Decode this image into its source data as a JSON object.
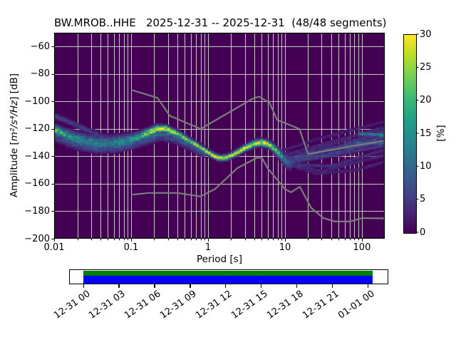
{
  "title": "BW.MROB..HHE   2025-12-31 -- 2025-12-31  (48/48 segments)",
  "meta": {
    "station_id": "BW.MROB..HHE",
    "date_start": "2025-12-31",
    "date_end": "2025-12-31",
    "segments": "48/48 segments"
  },
  "axes": {
    "x": {
      "label": "Period [s]",
      "scale": "log",
      "major_ticks": [
        0.01,
        0.1,
        1,
        10,
        100
      ],
      "major_labels": [
        "0.01",
        "0.1",
        "1",
        "10",
        "100"
      ]
    },
    "y": {
      "label_prefix": "Amplitude [",
      "label_math": "m²/s⁴/Hz",
      "label_suffix": "] [dB]",
      "ticks": [
        -60,
        -80,
        -100,
        -120,
        -140,
        -160,
        -180,
        -200
      ],
      "labels": [
        "−60",
        "−80",
        "−100",
        "−120",
        "−140",
        "−160",
        "−180",
        "−200"
      ]
    }
  },
  "colorbar": {
    "label": "[%]",
    "min": 0,
    "max": 30,
    "ticks": [
      0,
      5,
      10,
      15,
      20,
      25,
      30
    ],
    "tick_labels": [
      "0",
      "5",
      "10",
      "15",
      "20",
      "25",
      "30"
    ]
  },
  "timeline": {
    "tick_labels": [
      "12-31 00",
      "12-31 03",
      "12-31 06",
      "12-31 09",
      "12-31 12",
      "12-31 15",
      "12-31 18",
      "12-31 21",
      "01-01 00"
    ],
    "coverage_color": "#008000",
    "data_color": "#0000ff"
  },
  "colors": {
    "background": "#440154",
    "grid": "#c6c6c6",
    "noise_model": "#7d7d7d",
    "spine": "#000000",
    "viridis": [
      [
        0.0,
        68,
        1,
        84
      ],
      [
        0.1,
        72,
        36,
        117
      ],
      [
        0.2,
        65,
        68,
        135
      ],
      [
        0.3,
        53,
        95,
        141
      ],
      [
        0.4,
        42,
        120,
        142
      ],
      [
        0.5,
        33,
        144,
        141
      ],
      [
        0.6,
        34,
        167,
        133
      ],
      [
        0.7,
        68,
        190,
        112
      ],
      [
        0.8,
        122,
        209,
        81
      ],
      [
        0.9,
        189,
        222,
        38
      ],
      [
        1.0,
        253,
        231,
        37
      ]
    ]
  },
  "chart_data": {
    "type": "heatmap",
    "title": "BW.MROB..HHE   2025-12-31 -- 2025-12-31  (48/48 segments)",
    "xlabel": "Period [s]",
    "ylabel": "Amplitude [m²/s⁴/Hz] [dB]",
    "xscale": "log",
    "xlim": [
      0.01,
      198
    ],
    "ylim": [
      -200,
      -50
    ],
    "colorbar_label": "[%]",
    "clim": [
      0,
      30
    ],
    "grid": true,
    "mode_curve_comment": "dominant PSD mode line [period s, dB]",
    "mode_curve": [
      [
        0.01,
        -120.5
      ],
      [
        0.013,
        -123.5
      ],
      [
        0.018,
        -126.5
      ],
      [
        0.025,
        -129
      ],
      [
        0.04,
        -130.5
      ],
      [
        0.06,
        -130
      ],
      [
        0.08,
        -129
      ],
      [
        0.1,
        -128
      ],
      [
        0.13,
        -125.5
      ],
      [
        0.17,
        -122.5
      ],
      [
        0.22,
        -119.8
      ],
      [
        0.28,
        -119.8
      ],
      [
        0.35,
        -122
      ],
      [
        0.5,
        -126.5
      ],
      [
        0.7,
        -131.5
      ],
      [
        0.9,
        -135.5
      ],
      [
        1.1,
        -138.5
      ],
      [
        1.4,
        -141.3
      ],
      [
        1.8,
        -140.5
      ],
      [
        2.3,
        -137.5
      ],
      [
        3.0,
        -133.8
      ],
      [
        4.0,
        -130.6
      ],
      [
        5.0,
        -129.7
      ],
      [
        6.0,
        -131
      ],
      [
        7.0,
        -133.8
      ],
      [
        8.5,
        -138.5
      ],
      [
        10.0,
        -143
      ],
      [
        12.0,
        -145.5
      ]
    ],
    "histogram": {
      "bands": [
        {
          "name": "main-ridge",
          "pts": [
            [
              0.01,
              -120.5
            ],
            [
              0.013,
              -123.5
            ],
            [
              0.018,
              -126.5
            ],
            [
              0.025,
              -129
            ],
            [
              0.04,
              -130.5
            ],
            [
              0.06,
              -130
            ],
            [
              0.08,
              -129
            ],
            [
              0.1,
              -128
            ],
            [
              0.13,
              -125.5
            ],
            [
              0.17,
              -122.5
            ],
            [
              0.22,
              -119.8
            ],
            [
              0.28,
              -119.8
            ],
            [
              0.35,
              -122
            ],
            [
              0.5,
              -126.5
            ],
            [
              0.7,
              -131.5
            ],
            [
              0.9,
              -135.5
            ],
            [
              1.1,
              -138.5
            ],
            [
              1.4,
              -141.3
            ],
            [
              1.8,
              -140.5
            ],
            [
              2.3,
              -137.5
            ],
            [
              3.0,
              -133.8
            ],
            [
              4.0,
              -130.6
            ],
            [
              5.0,
              -129.7
            ],
            [
              6.0,
              -131
            ],
            [
              7.0,
              -133.8
            ],
            [
              8.5,
              -138.5
            ],
            [
              10.0,
              -143
            ],
            [
              12.0,
              -145.5
            ]
          ],
          "peak": [
            [
              0.01,
              22
            ],
            [
              0.02,
              15
            ],
            [
              0.05,
              13
            ],
            [
              0.09,
              15
            ],
            [
              0.14,
              22
            ],
            [
              0.2,
              30
            ],
            [
              0.3,
              29
            ],
            [
              0.45,
              24
            ],
            [
              0.7,
              27
            ],
            [
              1.0,
              30
            ],
            [
              1.5,
              30
            ],
            [
              2.2,
              27
            ],
            [
              3.0,
              29
            ],
            [
              4.0,
              30
            ],
            [
              5.5,
              30
            ],
            [
              7.0,
              24
            ],
            [
              8.5,
              17
            ],
            [
              10.0,
              11
            ],
            [
              12.0,
              7
            ]
          ],
          "sigma": [
            [
              0.01,
              2.2
            ],
            [
              0.025,
              3.2
            ],
            [
              0.06,
              3.2
            ],
            [
              0.1,
              2.6
            ],
            [
              0.15,
              2.0
            ],
            [
              0.25,
              1.6
            ],
            [
              0.5,
              1.3
            ],
            [
              1.0,
              1.2
            ],
            [
              2.0,
              1.3
            ],
            [
              4.0,
              1.5
            ],
            [
              6.0,
              1.6
            ],
            [
              8.0,
              2.0
            ],
            [
              10.0,
              2.6
            ],
            [
              12.0,
              3.2
            ]
          ]
        },
        {
          "name": "upper-left-trace",
          "pts": [
            [
              0.01,
              -110.5
            ],
            [
              0.014,
              -113.5
            ],
            [
              0.02,
              -117.5
            ],
            [
              0.029,
              -121.5
            ],
            [
              0.042,
              -125.5
            ],
            [
              0.055,
              -128
            ]
          ],
          "peak": [
            [
              0.01,
              8
            ],
            [
              0.02,
              6
            ],
            [
              0.055,
              5
            ]
          ],
          "sigma": 1.3
        },
        {
          "name": "broad-under-band",
          "pts": [
            [
              0.01,
              -125.5
            ],
            [
              0.018,
              -131
            ],
            [
              0.035,
              -134.5
            ],
            [
              0.06,
              -134
            ],
            [
              0.1,
              -131.5
            ],
            [
              0.16,
              -128
            ],
            [
              0.25,
              -125
            ],
            [
              0.4,
              -128
            ],
            [
              0.6,
              -132.5
            ],
            [
              0.9,
              -138
            ]
          ],
          "peak": 7,
          "sigma": 2.2
        },
        {
          "name": "sub-ridge",
          "pts": [
            [
              0.07,
              -131.5
            ],
            [
              0.1,
              -129.8
            ],
            [
              0.15,
              -126.8
            ],
            [
              0.22,
              -124.3
            ],
            [
              0.32,
              -123.8
            ],
            [
              0.45,
              -127
            ],
            [
              0.6,
              -131.5
            ]
          ],
          "peak": 12,
          "sigma": 1.0
        },
        {
          "name": "fan-1",
          "pts": [
            [
              9,
              -139.5
            ],
            [
              198,
              -118.5
            ]
          ],
          "peak": 4,
          "sigma": 0.8
        },
        {
          "name": "fan-2",
          "pts": [
            [
              10,
              -141.5
            ],
            [
              60,
              -131.5
            ],
            [
              198,
              -122.5
            ]
          ],
          "peak": 6,
          "sigma": 0.8
        },
        {
          "name": "fan-3",
          "pts": [
            [
              10,
              -143
            ],
            [
              198,
              -126
            ]
          ],
          "peak": 8,
          "sigma": 0.8
        },
        {
          "name": "fan-4",
          "pts": [
            [
              11,
              -144
            ],
            [
              50,
              -136.5
            ],
            [
              198,
              -128.5
            ]
          ],
          "peak": 7,
          "sigma": 0.8
        },
        {
          "name": "fan-5",
          "pts": [
            [
              11,
              -145
            ],
            [
              198,
              -132
            ]
          ],
          "peak": 6,
          "sigma": 0.8
        },
        {
          "name": "fan-6",
          "pts": [
            [
              12,
              -146
            ],
            [
              40,
              -147
            ],
            [
              198,
              -135
            ]
          ],
          "peak": 5,
          "sigma": 0.8
        },
        {
          "name": "fan-7",
          "pts": [
            [
              12,
              -146.5
            ],
            [
              30,
              -150.5
            ],
            [
              198,
              -139
            ]
          ],
          "peak": 4,
          "sigma": 0.8
        },
        {
          "name": "fan-8",
          "pts": [
            [
              13,
              -147.5
            ],
            [
              25,
              -152.5
            ],
            [
              80,
              -150
            ],
            [
              198,
              -144
            ]
          ],
          "peak": 3.5,
          "sigma": 0.8
        },
        {
          "name": "fan-9",
          "pts": [
            [
              9,
              -136
            ],
            [
              25,
              -127.5
            ],
            [
              198,
              -114.5
            ]
          ],
          "peak": 3,
          "sigma": 0.8
        },
        {
          "name": "fan-10",
          "pts": [
            [
              90,
              -123.5
            ],
            [
              198,
              -124.5
            ]
          ],
          "peak": 13,
          "sigma": 1.0
        },
        {
          "name": "fan-11",
          "pts": [
            [
              80,
              -130
            ],
            [
              198,
              -130.5
            ]
          ],
          "peak": 10,
          "sigma": 1.0
        },
        {
          "name": "fan-12",
          "pts": [
            [
              14,
              -141
            ],
            [
              40,
              -134.5
            ],
            [
              198,
              -120.5
            ]
          ],
          "peak": 5,
          "sigma": 0.8
        },
        {
          "name": "fan-13",
          "pts": [
            [
              15,
              -138
            ],
            [
              60,
              -128
            ],
            [
              198,
              -126.5
            ]
          ],
          "peak": 4,
          "sigma": 0.8
        }
      ]
    },
    "noise_models": {
      "NLNM": [
        [
          0.1,
          -168.0
        ],
        [
          0.17,
          -166.7
        ],
        [
          0.4,
          -166.7
        ],
        [
          0.8,
          -169.2
        ],
        [
          1.24,
          -163.7
        ],
        [
          2.4,
          -148.6
        ],
        [
          4.3,
          -141.1
        ],
        [
          5.0,
          -141.1
        ],
        [
          6.0,
          -149.0
        ],
        [
          10.0,
          -163.8
        ],
        [
          12.0,
          -166.2
        ],
        [
          15.6,
          -162.1
        ],
        [
          21.9,
          -177.5
        ],
        [
          31.6,
          -185.0
        ],
        [
          45.0,
          -187.5
        ],
        [
          70.0,
          -187.5
        ],
        [
          101.0,
          -185.0
        ],
        [
          198.0,
          -185.2
        ]
      ],
      "NHNM": [
        [
          0.1,
          -91.5
        ],
        [
          0.22,
          -97.4
        ],
        [
          0.32,
          -110.5
        ],
        [
          0.8,
          -120.0
        ],
        [
          3.8,
          -98.0
        ],
        [
          4.6,
          -96.5
        ],
        [
          6.3,
          -101.0
        ],
        [
          7.9,
          -113.5
        ],
        [
          15.4,
          -120.0
        ],
        [
          20.0,
          -138.3
        ],
        [
          198.0,
          -128.5
        ]
      ]
    }
  }
}
